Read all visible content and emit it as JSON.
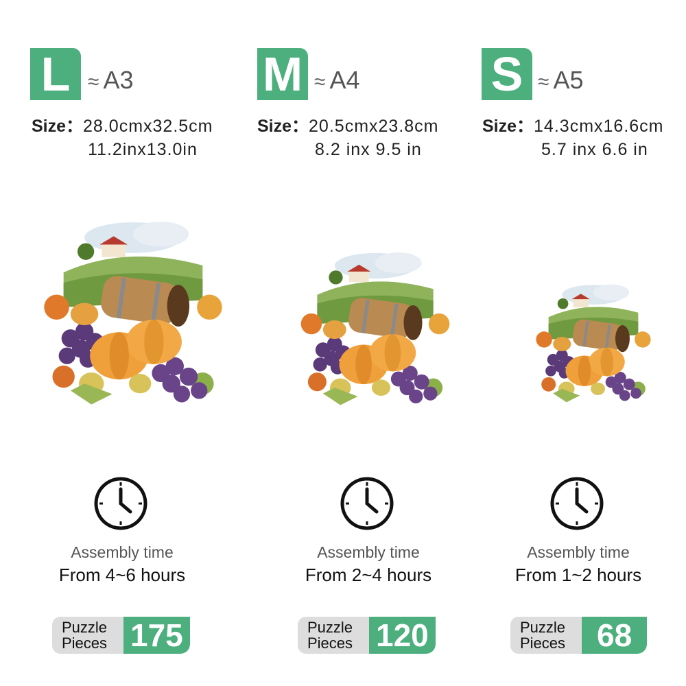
{
  "accent_color": "#4caf7d",
  "approx_symbol": "≈",
  "sizes": [
    {
      "letter": "L",
      "paper": "A3",
      "size_label": "Size：",
      "metric": "28.0cmx32.5cm",
      "imperial": "11.2inx13.0in",
      "assembly_label": "Assembly time",
      "assembly_time": "From 4~6 hours",
      "pieces_label_1": "Puzzle",
      "pieces_label_2": "Pieces",
      "pieces": "175",
      "icon": "clock-icon"
    },
    {
      "letter": "M",
      "paper": "A4",
      "size_label": "Size：",
      "metric": "20.5cmx23.8cm",
      "imperial": "8.2 inx 9.5 in",
      "assembly_label": "Assembly time",
      "assembly_time": "From 2~4 hours",
      "pieces_label_1": "Puzzle",
      "pieces_label_2": "Pieces",
      "pieces": "120",
      "icon": "clock-icon"
    },
    {
      "letter": "S",
      "paper": "A5",
      "size_label": "Size：",
      "metric": "14.3cmx16.6cm",
      "imperial": "5.7 inx 6.6 in",
      "assembly_label": "Assembly time",
      "assembly_time": "From 1~2 hours",
      "pieces_label_1": "Puzzle",
      "pieces_label_2": "Pieces",
      "pieces": "68",
      "icon": "clock-icon"
    }
  ]
}
